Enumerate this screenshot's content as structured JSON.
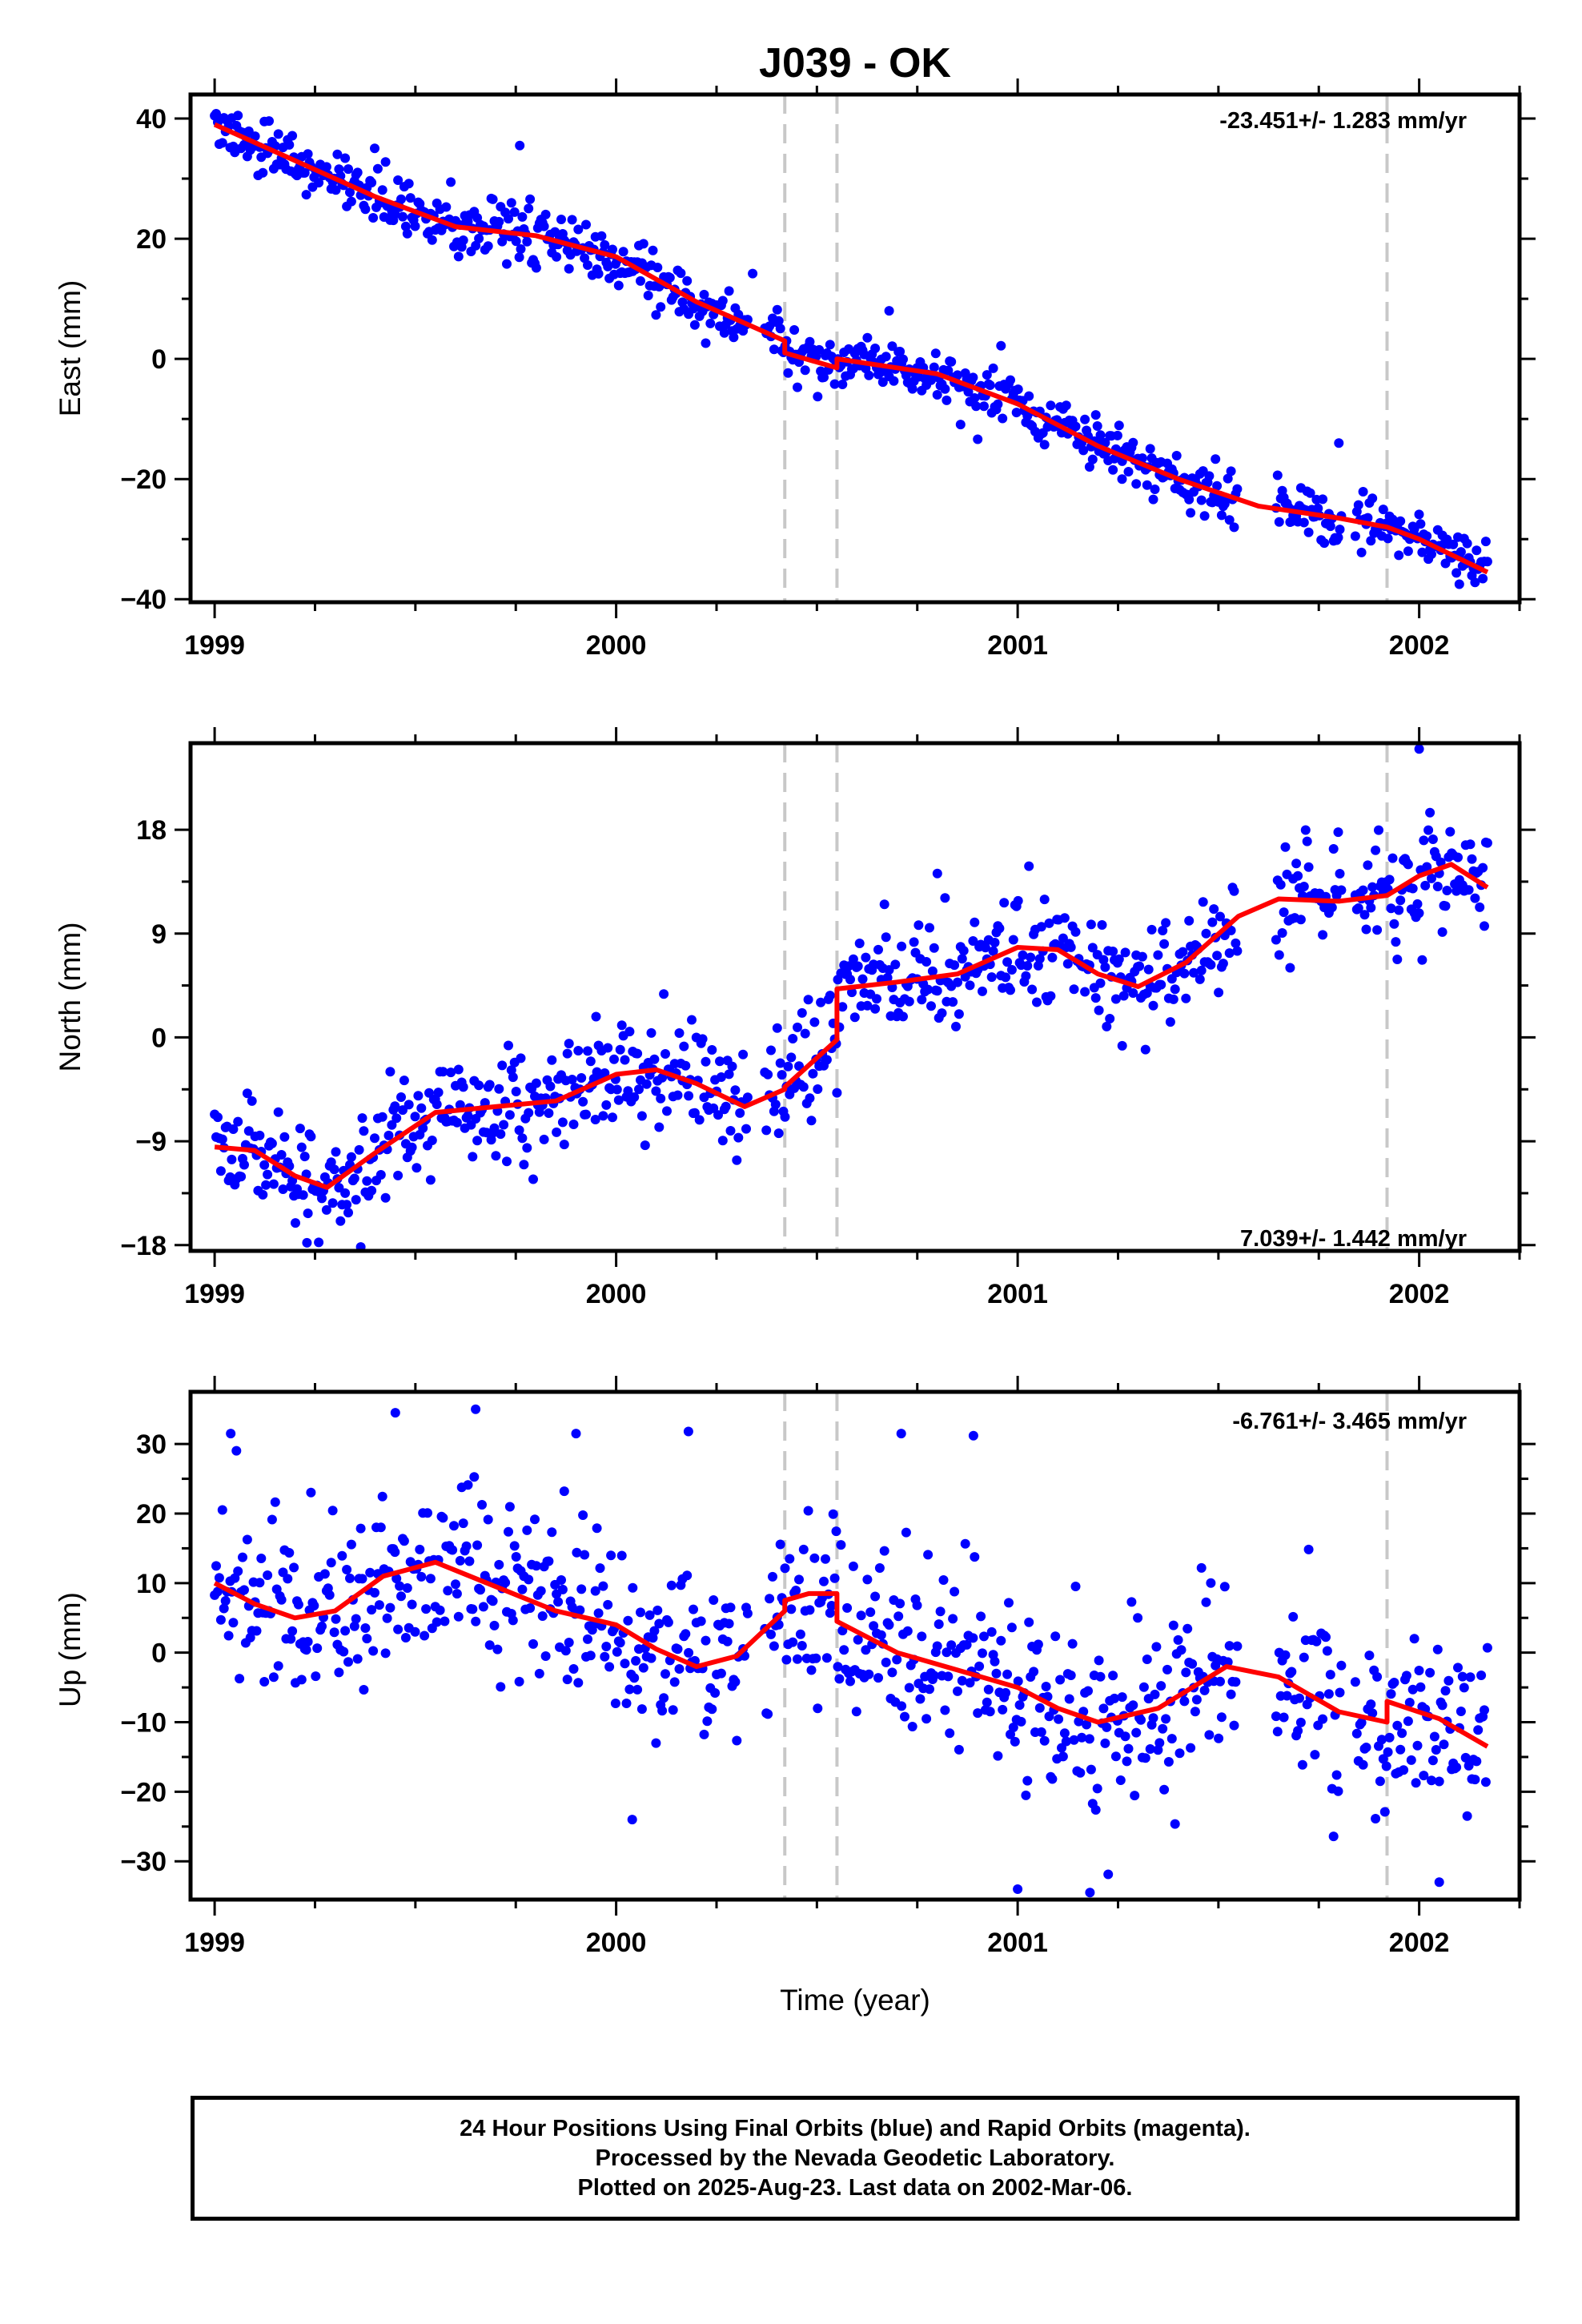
{
  "colors": {
    "final_points": "#0000ff",
    "model_line": "#ff0000",
    "event_lines": "#c8c8c8",
    "frame": "#000000"
  },
  "chart_data": {
    "type": "scatter",
    "title": "J039 - OK",
    "xlabel": "Time (year)",
    "xlim": [
      1998.94,
      2002.25
    ],
    "xticks": [
      1999,
      2000,
      2001,
      2002
    ],
    "event_years": [
      2000.42,
      2000.55,
      2001.92
    ],
    "panels": [
      {
        "component": "east",
        "ylabel": "East (mm)",
        "ylim": [
          -40.5,
          44
        ],
        "yticks": [
          40,
          20,
          0,
          -20,
          -40
        ],
        "yticks_display": [
          "40",
          "20",
          "0",
          "−20",
          "−40"
        ],
        "rate_text": "-23.451+/- 1.283 mm/yr",
        "rate_position": "top-right",
        "points_series": "24 Hour Positions, Final Orbits",
        "model_series": "trajectory model",
        "model_x": [
          1999.0,
          1999.2,
          1999.4,
          1999.6,
          1999.8,
          2000.0,
          2000.2,
          2000.42,
          2000.42,
          2000.55,
          2000.55,
          2000.8,
          2001.0,
          2001.2,
          2001.4,
          2001.6,
          2001.8,
          2001.92,
          2002.0,
          2002.17
        ],
        "model_y": [
          39.0,
          33.0,
          27.0,
          22.0,
          20.5,
          17.0,
          9.5,
          3.0,
          1.0,
          -1.5,
          0.0,
          -2.5,
          -7.5,
          -14.5,
          -20.0,
          -24.5,
          -26.5,
          -28.0,
          -30.0,
          -35.5
        ],
        "points": {
          "seed": 39,
          "count": 820,
          "scatter_mm": 2.2,
          "gaps": [
            [
              2000.33,
              2000.37
            ],
            [
              2001.55,
              2001.64
            ],
            [
              2001.81,
              2001.84
            ]
          ],
          "outliers": [
            [
              1999.76,
              35.5
            ],
            [
              2000.34,
              14.2
            ],
            [
              2000.68,
              8.0
            ],
            [
              2001.8,
              -14.0
            ],
            [
              2001.26,
              -20.0
            ],
            [
              2002.1,
              -37.5
            ]
          ]
        }
      },
      {
        "component": "north",
        "ylabel": "North (mm)",
        "ylim": [
          -18.5,
          25.5
        ],
        "yticks": [
          18,
          9,
          0,
          -9,
          -18
        ],
        "yticks_display": [
          "18",
          "9",
          "0",
          "−9",
          "−18"
        ],
        "rate_text": "7.039+/- 1.442 mm/yr",
        "rate_position": "bottom-right",
        "points_series": "24 Hour Positions, Final Orbits",
        "model_series": "trajectory model",
        "model_x": [
          1999.0,
          1999.1,
          1999.2,
          1999.28,
          1999.4,
          1999.55,
          1999.7,
          1999.85,
          2000.0,
          2000.1,
          2000.2,
          2000.32,
          2000.42,
          2000.42,
          2000.55,
          2000.55,
          2000.7,
          2000.85,
          2001.0,
          2001.1,
          2001.2,
          2001.3,
          2001.42,
          2001.55,
          2001.65,
          2001.8,
          2001.92,
          2002.0,
          2002.08,
          2002.17
        ],
        "model_y": [
          -9.5,
          -9.8,
          -12.0,
          -13.0,
          -10.0,
          -6.5,
          -6.0,
          -5.5,
          -3.2,
          -2.8,
          -4.0,
          -6.0,
          -4.5,
          -4.3,
          -0.2,
          4.2,
          4.8,
          5.5,
          7.8,
          7.6,
          5.5,
          4.4,
          6.5,
          10.5,
          12.0,
          11.8,
          12.3,
          14.0,
          15.0,
          13.0
        ],
        "points": {
          "seed": 117,
          "count": 820,
          "scatter_mm": 2.3,
          "gaps": [
            [
              2000.33,
              2000.37
            ],
            [
              2001.55,
              2001.64
            ],
            [
              2001.81,
              2001.84
            ]
          ],
          "outliers": [
            [
              2002.0,
              25.0
            ],
            [
              1999.23,
              -17.8
            ],
            [
              2000.8,
              14.2
            ],
            [
              2000.55,
              -4.8
            ],
            [
              1999.95,
              1.8
            ]
          ]
        }
      },
      {
        "component": "up",
        "ylabel": "Up (mm)",
        "ylim": [
          -35.5,
          37.5
        ],
        "yticks": [
          30,
          20,
          10,
          0,
          -10,
          -20,
          -30
        ],
        "yticks_display": [
          "30",
          "20",
          "10",
          "0",
          "−10",
          "−20",
          "−30"
        ],
        "rate_text": "-6.761+/- 3.465 mm/yr",
        "rate_position": "top-right",
        "points_series": "24 Hour Positions, Final Orbits",
        "model_series": "trajectory model",
        "model_x": [
          1999.0,
          1999.1,
          1999.2,
          1999.3,
          1999.42,
          1999.55,
          1999.7,
          1999.85,
          2000.0,
          2000.1,
          2000.2,
          2000.3,
          2000.42,
          2000.42,
          2000.48,
          2000.55,
          2000.55,
          2000.7,
          2000.85,
          2001.0,
          2001.1,
          2001.2,
          2001.35,
          2001.52,
          2001.65,
          2001.8,
          2001.92,
          2001.92,
          2002.05,
          2002.17
        ],
        "model_y": [
          10.0,
          7.0,
          5.0,
          6.0,
          11.0,
          13.0,
          9.5,
          6.0,
          4.0,
          0.5,
          -2.0,
          -0.5,
          6.0,
          7.5,
          8.5,
          8.5,
          4.5,
          0.0,
          -2.5,
          -5.0,
          -8.0,
          -10.0,
          -8.0,
          -2.0,
          -3.5,
          -8.5,
          -10.0,
          -7.0,
          -9.5,
          -13.5
        ],
        "points": {
          "seed": 523,
          "count": 820,
          "scatter_mm": 6.5,
          "gaps": [
            [
              2000.33,
              2000.37
            ],
            [
              2001.55,
              2001.64
            ],
            [
              2001.81,
              2001.84
            ]
          ],
          "outliers": [
            [
              1999.65,
              35.0
            ],
            [
              1999.45,
              34.5
            ],
            [
              1999.9,
              31.5
            ],
            [
              2000.18,
              31.8
            ],
            [
              2000.71,
              31.5
            ],
            [
              2000.89,
              31.2
            ],
            [
              2001.0,
              -34.0
            ],
            [
              2001.18,
              -34.5
            ],
            [
              2000.04,
              -24.0
            ],
            [
              2002.05,
              -33.0
            ],
            [
              1999.04,
              31.5
            ]
          ]
        }
      }
    ]
  },
  "caption": {
    "line1": "24 Hour Positions Using Final Orbits (blue) and Rapid Orbits (magenta).",
    "line2": "Processed by the Nevada Geodetic Laboratory.",
    "line3": "Plotted on 2025-Aug-23. Last data on 2002-Mar-06."
  }
}
